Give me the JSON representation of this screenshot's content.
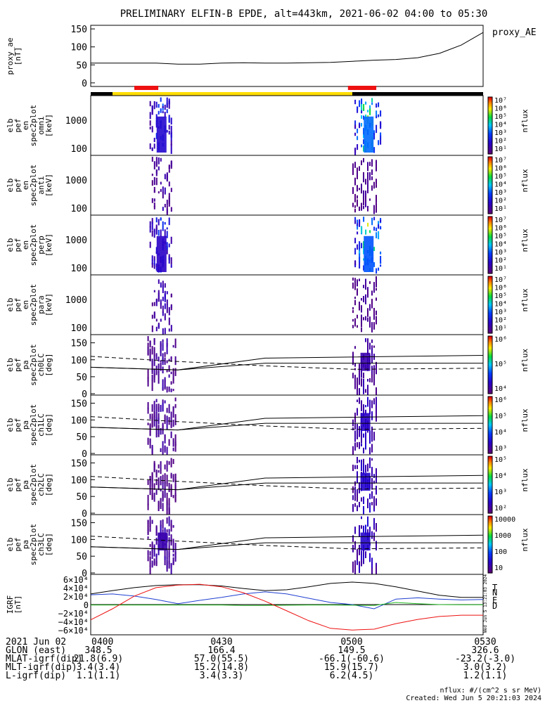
{
  "title": "PRELIMINARY ELFIN-B EPDE, alt=443km, 2021-06-02 04:00 to 05:30",
  "colors": {
    "red": "#ee1111",
    "yellow": "#ffdd00",
    "black": "#000000",
    "blue": "#1f3fd0",
    "green": "#22bb22"
  },
  "chart_data": [
    {
      "type": "line",
      "id": "proxy_ae",
      "ylabel": [
        "proxy_ae",
        "[nT]"
      ],
      "legend": "proxy_AE",
      "yticks": [
        150,
        100,
        50,
        0
      ],
      "ylim": [
        -10,
        160
      ],
      "x": [
        0,
        5,
        10,
        15,
        20,
        25,
        30,
        35,
        40,
        45,
        50,
        55,
        60,
        65,
        70,
        75,
        80,
        85,
        90
      ],
      "values": [
        55,
        55,
        55,
        55,
        52,
        52,
        55,
        56,
        55,
        55,
        56,
        57,
        60,
        63,
        65,
        70,
        82,
        105,
        140
      ]
    },
    {
      "type": "bars",
      "id": "science_zones",
      "xlim": [
        0,
        90
      ],
      "segments": [
        {
          "x0": 0,
          "x1": 5,
          "color": "#000000"
        },
        {
          "x0": 5,
          "x1": 60,
          "color": "#ffdd00"
        },
        {
          "x0": 60,
          "x1": 90,
          "color": "#000000"
        }
      ],
      "markers": [
        {
          "x0": 10,
          "x1": 15.5,
          "color": "#ee1111"
        },
        {
          "x0": 59,
          "x1": 65.5,
          "color": "#ee1111"
        }
      ]
    },
    {
      "type": "heatmap",
      "id": "spec_omni",
      "ylabel": [
        "elb",
        "pef",
        "en",
        "spec2plot",
        "omni",
        "[keV]"
      ],
      "yticks": [
        "1000",
        "100"
      ],
      "colorbar_ticks": [
        "10⁷",
        "10⁶",
        "10⁵",
        "10⁴",
        "10³",
        "10²",
        "10¹"
      ],
      "colorbar_label": "nflux",
      "bursts": [
        {
          "x0": 13.5,
          "x1": 19,
          "intensity": 0.4
        },
        {
          "x0": 60.5,
          "x1": 67,
          "intensity": 0.8
        }
      ]
    },
    {
      "type": "heatmap",
      "id": "spec_anti",
      "ylabel": [
        "elb",
        "pef",
        "en",
        "spec2plot",
        "anti",
        "[keV]"
      ],
      "yticks": [
        "1000",
        "100"
      ],
      "colorbar_ticks": [
        "10⁷",
        "10⁶",
        "10⁵",
        "10⁴",
        "10³",
        "10²",
        "10¹"
      ],
      "colorbar_label": "nflux",
      "bursts": [
        {
          "x0": 14,
          "x1": 19,
          "intensity": 0.15
        },
        {
          "x0": 60,
          "x1": 66,
          "intensity": 0.1
        }
      ]
    },
    {
      "type": "heatmap",
      "id": "spec_perp",
      "ylabel": [
        "elb",
        "pef",
        "en",
        "spec2plot",
        "perp",
        "[keV]"
      ],
      "yticks": [
        "1000",
        "100"
      ],
      "colorbar_ticks": [
        "10⁷",
        "10⁶",
        "10⁵",
        "10⁴",
        "10³",
        "10²",
        "10¹"
      ],
      "colorbar_label": "nflux",
      "bursts": [
        {
          "x0": 13.5,
          "x1": 19,
          "intensity": 0.35
        },
        {
          "x0": 60.5,
          "x1": 67,
          "intensity": 0.75
        }
      ]
    },
    {
      "type": "heatmap",
      "id": "spec_para",
      "ylabel": [
        "elb",
        "pef",
        "en",
        "spec2plot",
        "para",
        "[keV]"
      ],
      "yticks": [
        "1000",
        "100"
      ],
      "colorbar_ticks": [
        "10⁷",
        "10⁶",
        "10⁵",
        "10⁴",
        "10³",
        "10²",
        "10¹"
      ],
      "colorbar_label": "nflux",
      "bursts": [
        {
          "x0": 14,
          "x1": 19,
          "intensity": 0.2
        },
        {
          "x0": 60,
          "x1": 66,
          "intensity": 0.1
        }
      ]
    },
    {
      "type": "heatmap",
      "id": "pa_ch0",
      "ylabel": [
        "elb",
        "pef",
        "pa",
        "spec2plot",
        "ch0LC",
        "[deg]"
      ],
      "yticks": [
        "150",
        "100",
        "50",
        "0"
      ],
      "colorbar_ticks": [
        "10⁶",
        "10⁵",
        "10⁴"
      ],
      "colorbar_label": "nflux",
      "bursts": [
        {
          "x0": 13,
          "x1": 20,
          "intensity": 0.3
        },
        {
          "x0": 60,
          "x1": 66,
          "intensity": 0.35
        }
      ]
    },
    {
      "type": "heatmap",
      "id": "pa_ch1",
      "ylabel": [
        "elb",
        "pef",
        "pa",
        "spec2plot",
        "ch1LC",
        "[deg]"
      ],
      "yticks": [
        "150",
        "100",
        "50",
        "0"
      ],
      "colorbar_ticks": [
        "10⁶",
        "10⁵",
        "10⁴",
        "10³"
      ],
      "colorbar_label": "nflux",
      "bursts": [
        {
          "x0": 13,
          "x1": 20,
          "intensity": 0.3
        },
        {
          "x0": 60,
          "x1": 66,
          "intensity": 0.5
        }
      ]
    },
    {
      "type": "heatmap",
      "id": "pa_ch2",
      "ylabel": [
        "elb",
        "pef",
        "pa",
        "spec2plot",
        "ch2LC",
        "[deg]"
      ],
      "yticks": [
        "150",
        "100",
        "50",
        "0"
      ],
      "colorbar_ticks": [
        "10⁵",
        "10⁴",
        "10³",
        "10²"
      ],
      "colorbar_label": "nflux",
      "bursts": [
        {
          "x0": 13,
          "x1": 20,
          "intensity": 0.2
        },
        {
          "x0": 60,
          "x1": 66,
          "intensity": 0.55
        }
      ]
    },
    {
      "type": "heatmap",
      "id": "pa_ch3",
      "ylabel": [
        "elb",
        "pef",
        "pa",
        "spec2plot",
        "ch3LC",
        "[deg]"
      ],
      "yticks": [
        "150",
        "100",
        "50",
        "0"
      ],
      "colorbar_ticks": [
        "10000",
        "1000",
        "100",
        "10"
      ],
      "colorbar_label": "nflux",
      "bursts": [
        {
          "x0": 13,
          "x1": 20,
          "intensity": 0.35
        },
        {
          "x0": 60,
          "x1": 66,
          "intensity": 0.55
        }
      ]
    },
    {
      "type": "line",
      "id": "igrf",
      "ylabel": [
        "IGRF",
        "[nT]"
      ],
      "yticks": [
        "6×10⁴",
        "4×10⁴",
        "2×10⁴",
        "0",
        "−2×10⁴",
        "−4×10⁴",
        "−6×10⁴"
      ],
      "ylim": [
        -68000,
        68000
      ],
      "x": [
        0,
        5,
        10,
        15,
        20,
        25,
        30,
        35,
        40,
        45,
        50,
        55,
        60,
        65,
        70,
        75,
        80,
        85,
        90
      ],
      "series": [
        {
          "name": "T",
          "color": "#000000",
          "values": [
            25000,
            33000,
            40000,
            45000,
            47000,
            47000,
            44000,
            38000,
            33000,
            35000,
            42000,
            50000,
            53000,
            50000,
            42000,
            32000,
            22000,
            17000,
            17000
          ]
        },
        {
          "name": "N",
          "color": "#1f3fd0",
          "values": [
            23000,
            25000,
            20000,
            12000,
            2000,
            10000,
            17000,
            25000,
            30000,
            25000,
            15000,
            5000,
            0,
            -10000,
            13000,
            16000,
            13000,
            11000,
            12000
          ]
        },
        {
          "name": "E",
          "color": "#22bb22",
          "values": [
            -1000,
            -1000,
            -1000,
            -1000,
            -1000,
            -1000,
            -1000,
            -2000,
            -2000,
            -1500,
            -1000,
            -1000,
            -1500,
            -2000,
            5000,
            2000,
            0,
            -500,
            -500
          ]
        },
        {
          "name": "D",
          "color": "#ee1111",
          "values": [
            -36000,
            -10000,
            20000,
            40000,
            46000,
            48000,
            42000,
            28000,
            8000,
            -15000,
            -38000,
            -56000,
            -60000,
            -58000,
            -45000,
            -35000,
            -28000,
            -25000,
            -25000
          ]
        }
      ]
    }
  ],
  "ticks": {
    "times": [
      "0400",
      "0430",
      "0500",
      "0530"
    ],
    "date": "2021 Jun 02",
    "rows": [
      {
        "label": "GLON (east)",
        "values": [
          "348.5",
          "166.4",
          "149.5",
          "326.6"
        ]
      },
      {
        "label": "MLAT-igrf(dip)",
        "values": [
          "21.8(6.9)",
          "57.0(55.5)",
          "-66.1(-60.6)",
          "-23.2(-3.0)"
        ]
      },
      {
        "label": "MLT-igrf(dip)",
        "values": [
          "3.4(3.4)",
          "15.2(14.8)",
          "15.9(15.7)",
          "3.0(3.2)"
        ]
      },
      {
        "label": "L-igrf(dip)",
        "values": [
          "1.1(1.1)",
          "3.4(3.3)",
          "6.2(4.5)",
          "1.2(1.1)"
        ]
      }
    ]
  },
  "footer": {
    "units": "nflux: #/(cm^2 s sr MeV)",
    "created": "Created: Wed Jun  5 20:21:03 2024",
    "side_stamp": "Wed Jun  5 13:21:03 2024"
  }
}
